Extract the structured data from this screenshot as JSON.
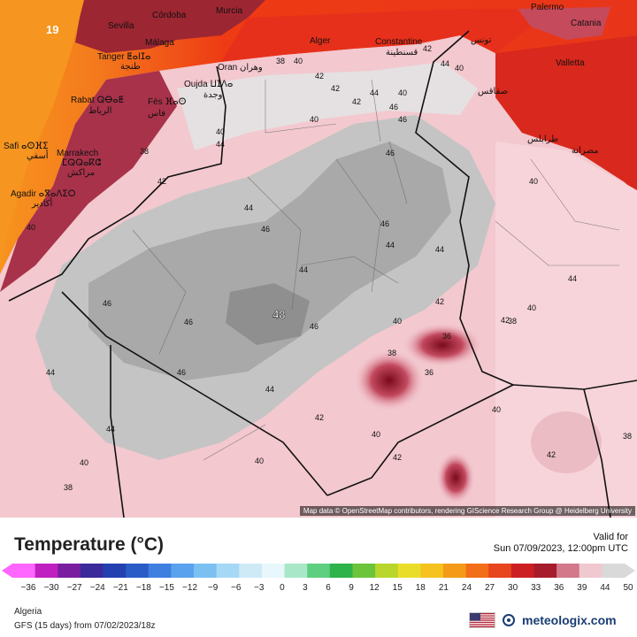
{
  "map": {
    "region_name": "Algeria",
    "attribution": "Map data © OpenStreetMap contributors, rendering GIScience Research Group @ Heidelberg University",
    "max_label": "48",
    "cities": [
      {
        "id": "cordoba",
        "name": "Córdoba"
      },
      {
        "id": "murcia",
        "name": "Murcia"
      },
      {
        "id": "sevilla",
        "name": "Sevilla"
      },
      {
        "id": "malaga",
        "name": "Málaga"
      },
      {
        "id": "tanger",
        "name": "Tanger ⵟⴰⵏⵊⴰ"
      },
      {
        "id": "tanger-ar",
        "name": "طنجة"
      },
      {
        "id": "oran",
        "name": "Oran وهران"
      },
      {
        "id": "alger",
        "name": "Alger"
      },
      {
        "id": "constantine",
        "name": "Constantine"
      },
      {
        "id": "constantine-ar",
        "name": "قسنطينة"
      },
      {
        "id": "tunis",
        "name": "تونس"
      },
      {
        "id": "palermo",
        "name": "Palermo"
      },
      {
        "id": "catania",
        "name": "Catania"
      },
      {
        "id": "valletta",
        "name": "Valletta"
      },
      {
        "id": "oujda",
        "name": "Oujda ⵡⵊⴷⴰ"
      },
      {
        "id": "oujda-ar",
        "name": "وجدة"
      },
      {
        "id": "rabat",
        "name": "Rabat ⵕⴱⴰⵟ"
      },
      {
        "id": "rabat-ar",
        "name": "الرباط"
      },
      {
        "id": "fes",
        "name": "Fès ⴼⴰⵙ"
      },
      {
        "id": "fes-ar",
        "name": "فاس"
      },
      {
        "id": "safi",
        "name": "Safi ⴰⵙⴼⵉ"
      },
      {
        "id": "safi-ar",
        "name": "أسفي"
      },
      {
        "id": "marrakech",
        "name": "Marrakech"
      },
      {
        "id": "marrakech-tf",
        "name": "ⵎⵕⵕⴰⴽⵛ"
      },
      {
        "id": "marrakech-ar",
        "name": "مراكش"
      },
      {
        "id": "agadir",
        "name": "Agadir ⴰⴳⴰⴷⵉⵔ"
      },
      {
        "id": "agadir-ar",
        "name": "أكادير"
      },
      {
        "id": "sfax",
        "name": "صفاقس"
      },
      {
        "id": "tripoli",
        "name": "طرابلس"
      },
      {
        "id": "misrata",
        "name": "مصراتة"
      }
    ],
    "contour_labels": [
      "19",
      "38",
      "40",
      "42",
      "40",
      "44",
      "42",
      "40",
      "42",
      "44",
      "46",
      "40",
      "46",
      "44",
      "42",
      "40",
      "40",
      "42",
      "44",
      "46",
      "46",
      "44",
      "46",
      "46",
      "44",
      "44",
      "42",
      "46",
      "44",
      "48",
      "46",
      "46",
      "40",
      "42",
      "44",
      "44",
      "38",
      "36",
      "38",
      "36",
      "40",
      "40",
      "44",
      "42",
      "40",
      "40",
      "42",
      "42",
      "38",
      "40",
      "40",
      "38",
      "38"
    ]
  },
  "legend": {
    "title": "Temperature (°C)",
    "valid_label": "Valid for",
    "valid_time": "Sun 07/09/2023, 12:00pm UTC",
    "ticks": [
      "−36",
      "−30",
      "−27",
      "−24",
      "−21",
      "−18",
      "−15",
      "−12",
      "−9",
      "−6",
      "−3",
      "0",
      "3",
      "6",
      "9",
      "12",
      "15",
      "18",
      "21",
      "24",
      "27",
      "30",
      "33",
      "36",
      "39",
      "44",
      "50"
    ],
    "colors": [
      "#ff66ff",
      "#c020c0",
      "#7a1ea0",
      "#3a2a9a",
      "#2440b0",
      "#2a5cc8",
      "#3f7fe0",
      "#5aa2ee",
      "#7cc0f2",
      "#a5d8f5",
      "#cfeaf7",
      "#e8f7fb",
      "#a8e8c8",
      "#5ecf80",
      "#2eb24a",
      "#6cc43a",
      "#b8d62c",
      "#eadd2a",
      "#f5c21e",
      "#f59a18",
      "#f26e18",
      "#e8461e",
      "#cc1f24",
      "#a71c2c",
      "#d2788a",
      "#f0c8d0",
      "#d9d9d9"
    ]
  },
  "footer": {
    "region": "Algeria",
    "model": "GFS (15 days) from 07/02/2023/18z",
    "brand": "meteologix.com"
  }
}
